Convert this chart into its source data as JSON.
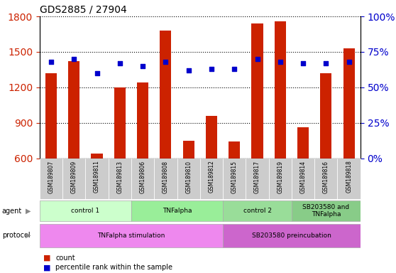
{
  "title": "GDS2885 / 27904",
  "samples": [
    "GSM189807",
    "GSM189809",
    "GSM189811",
    "GSM189813",
    "GSM189806",
    "GSM189808",
    "GSM189810",
    "GSM189812",
    "GSM189815",
    "GSM189817",
    "GSM189819",
    "GSM189814",
    "GSM189816",
    "GSM189818"
  ],
  "counts": [
    1320,
    1420,
    640,
    1200,
    1240,
    1680,
    750,
    960,
    740,
    1740,
    1760,
    860,
    1320,
    1530
  ],
  "percentile_ranks": [
    68,
    70,
    60,
    67,
    65,
    68,
    62,
    63,
    63,
    70,
    68,
    67,
    67,
    68
  ],
  "ylim_left": [
    600,
    1800
  ],
  "ylim_right": [
    0,
    100
  ],
  "yticks_left": [
    600,
    900,
    1200,
    1500,
    1800
  ],
  "yticks_right": [
    0,
    25,
    50,
    75,
    100
  ],
  "bar_color": "#cc2200",
  "dot_color": "#0000cc",
  "agent_groups": [
    {
      "label": "control 1",
      "start": 0,
      "end": 4,
      "color": "#ccffcc"
    },
    {
      "label": "TNFalpha",
      "start": 4,
      "end": 8,
      "color": "#99ee99"
    },
    {
      "label": "control 2",
      "start": 8,
      "end": 11,
      "color": "#99dd99"
    },
    {
      "label": "SB203580 and\nTNFalpha",
      "start": 11,
      "end": 14,
      "color": "#88cc88"
    }
  ],
  "protocol_groups": [
    {
      "label": "TNFalpha stimulation",
      "start": 0,
      "end": 8,
      "color": "#ee88ee"
    },
    {
      "label": "SB203580 preincubation",
      "start": 8,
      "end": 14,
      "color": "#cc66cc"
    }
  ],
  "legend_items": [
    {
      "label": "count",
      "color": "#cc2200"
    },
    {
      "label": "percentile rank within the sample",
      "color": "#0000cc"
    }
  ],
  "bar_width": 0.5,
  "background_color": "#ffffff",
  "grid_color": "#000000",
  "tick_color_left": "#cc2200",
  "tick_color_right": "#0000cc",
  "xticklabel_bg": "#cccccc"
}
